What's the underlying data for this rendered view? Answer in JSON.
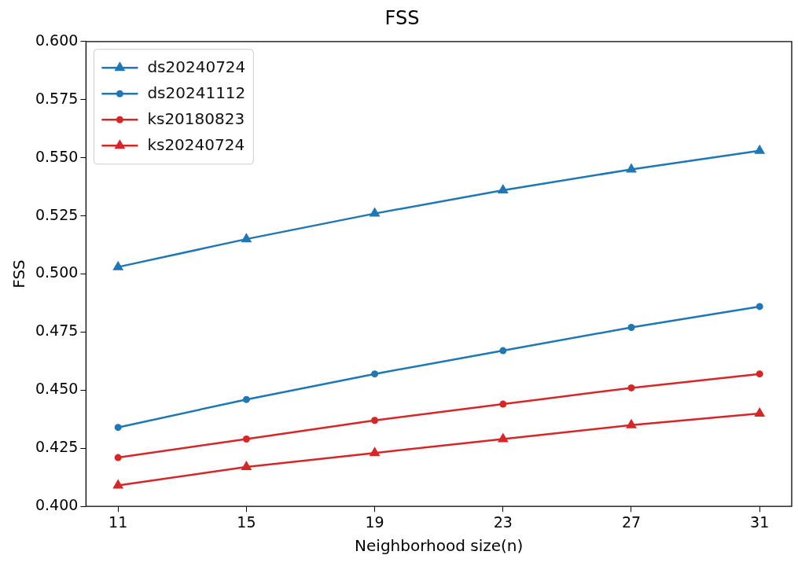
{
  "chart_data": {
    "type": "line",
    "title": "FSS",
    "xlabel": "Neighborhood size(n)",
    "ylabel": "FSS",
    "x": [
      11,
      15,
      19,
      23,
      27,
      31
    ],
    "series": [
      {
        "name": "ds20240724",
        "color": "#1f77b4",
        "marker": "triangle",
        "values": [
          0.503,
          0.515,
          0.526,
          0.536,
          0.545,
          0.553
        ]
      },
      {
        "name": "ds20241112",
        "color": "#1f77b4",
        "marker": "circle",
        "values": [
          0.434,
          0.446,
          0.457,
          0.467,
          0.477,
          0.486
        ]
      },
      {
        "name": "ks20180823",
        "color": "#d62728",
        "marker": "circle",
        "values": [
          0.421,
          0.429,
          0.437,
          0.444,
          0.451,
          0.457
        ]
      },
      {
        "name": "ks20240724",
        "color": "#d62728",
        "marker": "triangle",
        "values": [
          0.409,
          0.417,
          0.423,
          0.429,
          0.435,
          0.44
        ]
      }
    ],
    "xlim": [
      10,
      32
    ],
    "xticks": [
      11,
      15,
      19,
      23,
      27,
      31
    ],
    "ylim": [
      0.4,
      0.6
    ],
    "yticks": [
      {
        "value": 0.4,
        "label": "0.400"
      },
      {
        "value": 0.425,
        "label": "0.425"
      },
      {
        "value": 0.45,
        "label": "0.450"
      },
      {
        "value": 0.475,
        "label": "0.475"
      },
      {
        "value": 0.5,
        "label": "0.500"
      },
      {
        "value": 0.525,
        "label": "0.525"
      },
      {
        "value": 0.55,
        "label": "0.550"
      },
      {
        "value": 0.575,
        "label": "0.575"
      },
      {
        "value": 0.6,
        "label": "0.600"
      }
    ],
    "grid": false,
    "legend": "top left",
    "line_style": "solid"
  }
}
